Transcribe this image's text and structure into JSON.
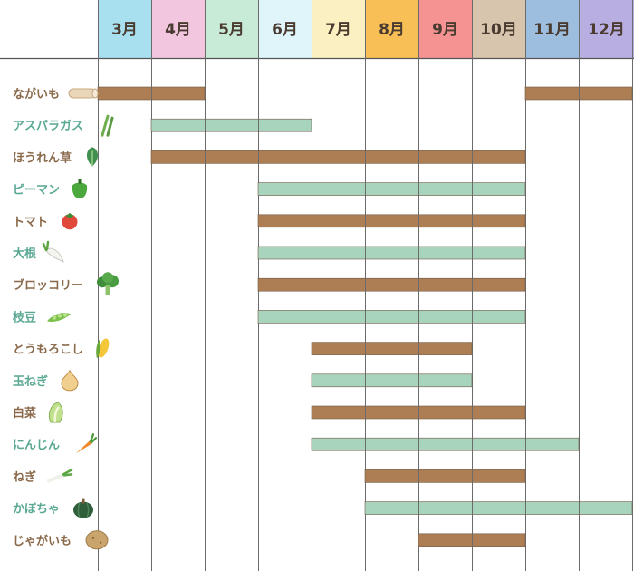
{
  "chart_data": {
    "type": "gantt",
    "months": [
      "3月",
      "4月",
      "5月",
      "6月",
      "7月",
      "8月",
      "9月",
      "10月",
      "11月",
      "12月"
    ],
    "month_colors": [
      "#a8e0ef",
      "#f3c6df",
      "#c7ebd7",
      "#dff5f9",
      "#fbf0c2",
      "#f7bf55",
      "#f59393",
      "#d8c5ae",
      "#9dbedf",
      "#b9aee2"
    ],
    "bar_colors": {
      "brown": "#ad7e53",
      "green": "#a8d3bd"
    },
    "label_colors": {
      "brown": "#8a6a4b",
      "green": "#5aa893"
    },
    "rows": [
      {
        "label": "ながいも",
        "icon": "nagaimo-icon",
        "color": "brown",
        "spans": [
          [
            3,
            4
          ],
          [
            11,
            12
          ]
        ]
      },
      {
        "label": "アスパラガス",
        "icon": "asparagus-icon",
        "color": "green",
        "spans": [
          [
            4,
            6
          ]
        ]
      },
      {
        "label": "ほうれん草",
        "icon": "spinach-icon",
        "color": "brown",
        "spans": [
          [
            4,
            10
          ]
        ]
      },
      {
        "label": "ピーマン",
        "icon": "bell-pepper-icon",
        "color": "green",
        "spans": [
          [
            6,
            10
          ]
        ]
      },
      {
        "label": "トマト",
        "icon": "tomato-icon",
        "color": "brown",
        "spans": [
          [
            6,
            10
          ]
        ]
      },
      {
        "label": "大根",
        "icon": "daikon-icon",
        "color": "green",
        "spans": [
          [
            6,
            10
          ]
        ]
      },
      {
        "label": "ブロッコリー",
        "icon": "broccoli-icon",
        "color": "brown",
        "spans": [
          [
            6,
            10
          ]
        ]
      },
      {
        "label": "枝豆",
        "icon": "edamame-icon",
        "color": "green",
        "spans": [
          [
            6,
            10
          ]
        ]
      },
      {
        "label": "とうもろこし",
        "icon": "corn-icon",
        "color": "brown",
        "spans": [
          [
            7,
            9
          ]
        ]
      },
      {
        "label": "玉ねぎ",
        "icon": "onion-icon",
        "color": "green",
        "spans": [
          [
            7,
            9
          ]
        ]
      },
      {
        "label": "白菜",
        "icon": "napa-cabbage-icon",
        "color": "brown",
        "spans": [
          [
            7,
            10
          ]
        ]
      },
      {
        "label": "にんじん",
        "icon": "carrot-icon",
        "color": "green",
        "spans": [
          [
            7,
            11
          ]
        ]
      },
      {
        "label": "ねぎ",
        "icon": "green-onion-icon",
        "color": "brown",
        "spans": [
          [
            8,
            10
          ]
        ]
      },
      {
        "label": "かぼちゃ",
        "icon": "pumpkin-icon",
        "color": "green",
        "spans": [
          [
            8,
            12
          ]
        ]
      },
      {
        "label": "じゃがいも",
        "icon": "potato-icon",
        "color": "brown",
        "spans": [
          [
            9,
            10
          ]
        ]
      }
    ]
  }
}
